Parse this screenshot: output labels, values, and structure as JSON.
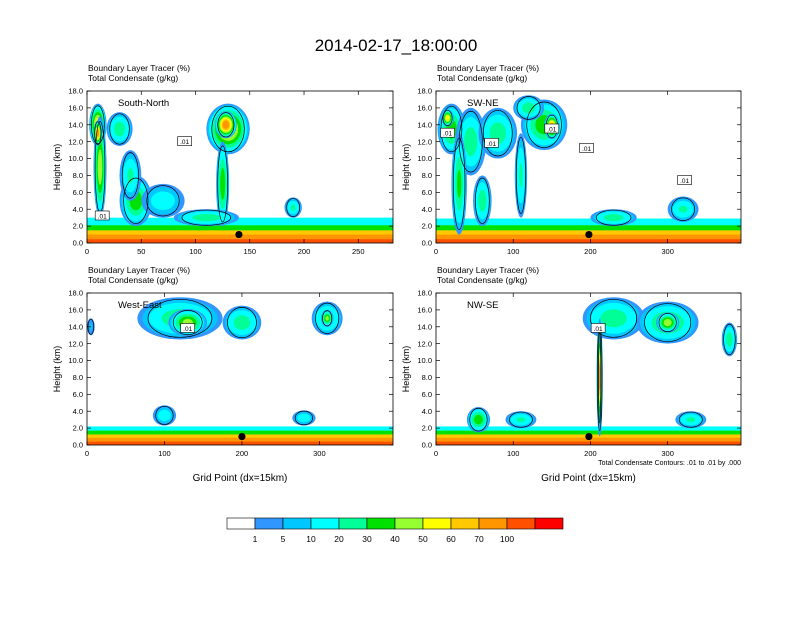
{
  "title": "2014-02-17_18:00:00",
  "chart_data": [
    {
      "type": "heatmap",
      "panel": "top-left",
      "label": "South-North",
      "header_line1": "Boundary Layer Tracer   (%)",
      "header_line2": "Total Condensate   (g/kg)",
      "ylabel": "Height (km)",
      "xlabel": "",
      "xlim": [
        0,
        282
      ],
      "ylim": [
        0,
        18
      ],
      "xticks": [
        0,
        50,
        100,
        150,
        200,
        250
      ],
      "yticks": [
        "0.0",
        "2.0",
        "4.0",
        "6.0",
        "8.0",
        "10.0",
        "12.0",
        "14.0",
        "16.0",
        "18.0"
      ],
      "contour_labels": [
        {
          "text": ".01",
          "x": 14,
          "y": 3.2
        },
        {
          "text": ".01",
          "x": 90,
          "y": 12
        }
      ],
      "marker": {
        "x": 140,
        "y": 1.0
      },
      "blobs": [
        {
          "x": 10,
          "y": 14,
          "v": 55,
          "rx": 8,
          "ry": 2.5
        },
        {
          "x": 12,
          "y": 9,
          "v": 45,
          "rx": 6,
          "ry": 6
        },
        {
          "x": 10,
          "y": 13,
          "v": 70,
          "rx": 4,
          "ry": 1.5
        },
        {
          "x": 30,
          "y": 13.5,
          "v": 25,
          "rx": 12,
          "ry": 2
        },
        {
          "x": 45,
          "y": 5,
          "v": 35,
          "rx": 15,
          "ry": 3
        },
        {
          "x": 40,
          "y": 8,
          "v": 20,
          "rx": 10,
          "ry": 3
        },
        {
          "x": 130,
          "y": 13.5,
          "v": 55,
          "rx": 20,
          "ry": 3
        },
        {
          "x": 128,
          "y": 14,
          "v": 75,
          "rx": 10,
          "ry": 1.6
        },
        {
          "x": 125,
          "y": 7,
          "v": 35,
          "rx": 6,
          "ry": 5
        },
        {
          "x": 70,
          "y": 5,
          "v": 15,
          "rx": 20,
          "ry": 2
        },
        {
          "x": 190,
          "y": 4.2,
          "v": 20,
          "rx": 8,
          "ry": 1.2
        },
        {
          "x": 110,
          "y": 3,
          "v": 25,
          "rx": 30,
          "ry": 1
        }
      ],
      "surface": [
        {
          "v": 10,
          "h": 3.0
        },
        {
          "v": 30,
          "h": 2.1
        },
        {
          "v": 60,
          "h": 1.5
        },
        {
          "v": 80,
          "h": 1.0
        },
        {
          "v": 100,
          "h": 0.45
        }
      ]
    },
    {
      "type": "heatmap",
      "panel": "top-right",
      "label": "SW-NE",
      "header_line1": "Boundary Layer Tracer   (%)",
      "header_line2": "Total Condensate   (g/kg)",
      "ylabel": "Height (km)",
      "xlabel": "",
      "xlim": [
        0,
        395
      ],
      "ylim": [
        0,
        18
      ],
      "xticks": [
        0,
        100,
        200,
        300
      ],
      "yticks": [
        "0.0",
        "2.0",
        "4.0",
        "6.0",
        "8.0",
        "10.0",
        "12.0",
        "14.0",
        "16.0",
        "18.0"
      ],
      "contour_labels": [
        {
          "text": ".01",
          "x": 15,
          "y": 13
        },
        {
          "text": ".01",
          "x": 72,
          "y": 11.8
        },
        {
          "text": ".01",
          "x": 150,
          "y": 13.5
        },
        {
          "text": ".01",
          "x": 195,
          "y": 11.2
        },
        {
          "text": ".01",
          "x": 322,
          "y": 7.4
        }
      ],
      "marker": {
        "x": 198,
        "y": 1.0
      },
      "blobs": [
        {
          "x": 20,
          "y": 13.5,
          "v": 35,
          "rx": 18,
          "ry": 3
        },
        {
          "x": 15,
          "y": 14.8,
          "v": 55,
          "rx": 8,
          "ry": 1
        },
        {
          "x": 45,
          "y": 12,
          "v": 25,
          "rx": 20,
          "ry": 4
        },
        {
          "x": 30,
          "y": 7,
          "v": 30,
          "rx": 10,
          "ry": 6
        },
        {
          "x": 80,
          "y": 13,
          "v": 25,
          "rx": 25,
          "ry": 3
        },
        {
          "x": 140,
          "y": 14,
          "v": 35,
          "rx": 30,
          "ry": 3
        },
        {
          "x": 150,
          "y": 13.8,
          "v": 65,
          "rx": 10,
          "ry": 1.5
        },
        {
          "x": 120,
          "y": 16,
          "v": 25,
          "rx": 20,
          "ry": 1.5
        },
        {
          "x": 110,
          "y": 8,
          "v": 20,
          "rx": 8,
          "ry": 5
        },
        {
          "x": 60,
          "y": 5,
          "v": 25,
          "rx": 12,
          "ry": 3
        },
        {
          "x": 320,
          "y": 4,
          "v": 20,
          "rx": 20,
          "ry": 1.5
        },
        {
          "x": 230,
          "y": 3,
          "v": 25,
          "rx": 30,
          "ry": 1
        }
      ],
      "surface": [
        {
          "v": 10,
          "h": 2.9
        },
        {
          "v": 30,
          "h": 2.1
        },
        {
          "v": 60,
          "h": 1.5
        },
        {
          "v": 80,
          "h": 1.0
        },
        {
          "v": 100,
          "h": 0.45
        }
      ]
    },
    {
      "type": "heatmap",
      "panel": "bottom-left",
      "label": "West-East",
      "header_line1": "Boundary Layer Tracer   (%)",
      "header_line2": "Total Condensate   (g/kg)",
      "ylabel": "Height (km)",
      "xlabel": "Grid Point (dx=15km)",
      "xlim": [
        0,
        395
      ],
      "ylim": [
        0,
        18
      ],
      "xticks": [
        0,
        100,
        200,
        300
      ],
      "yticks": [
        "0.0",
        "2.0",
        "4.0",
        "6.0",
        "8.0",
        "10.0",
        "12.0",
        "14.0",
        "16.0",
        "18.0"
      ],
      "contour_labels": [
        {
          "text": ".01",
          "x": 130,
          "y": 13.8
        }
      ],
      "marker": {
        "x": 200,
        "y": 1.0
      },
      "blobs": [
        {
          "x": 120,
          "y": 15,
          "v": 25,
          "rx": 55,
          "ry": 2.5
        },
        {
          "x": 130,
          "y": 14.5,
          "v": 40,
          "rx": 25,
          "ry": 1.6
        },
        {
          "x": 200,
          "y": 14.5,
          "v": 25,
          "rx": 25,
          "ry": 2
        },
        {
          "x": 310,
          "y": 15,
          "v": 25,
          "rx": 20,
          "ry": 2
        },
        {
          "x": 310,
          "y": 15,
          "v": 40,
          "rx": 8,
          "ry": 1
        },
        {
          "x": 5,
          "y": 14,
          "v": 5,
          "rx": 5,
          "ry": 1
        },
        {
          "x": 100,
          "y": 3.5,
          "v": 15,
          "rx": 15,
          "ry": 1.2
        },
        {
          "x": 280,
          "y": 3.2,
          "v": 15,
          "rx": 15,
          "ry": 0.9
        }
      ],
      "surface": [
        {
          "v": 10,
          "h": 2.2
        },
        {
          "v": 30,
          "h": 1.7
        },
        {
          "v": 60,
          "h": 1.25
        },
        {
          "v": 80,
          "h": 0.85
        },
        {
          "v": 100,
          "h": 0.4
        }
      ]
    },
    {
      "type": "heatmap",
      "panel": "bottom-right",
      "label": "NW-SE",
      "header_line1": "Boundary Layer Tracer   (%)",
      "header_line2": "Total Condensate   (g/kg)",
      "ylabel": "Height (km)",
      "xlabel": "Grid Point (dx=15km)",
      "xlim": [
        0,
        395
      ],
      "ylim": [
        0,
        18
      ],
      "xticks": [
        0,
        100,
        200,
        300
      ],
      "yticks": [
        "0.0",
        "2.0",
        "4.0",
        "6.0",
        "8.0",
        "10.0",
        "12.0",
        "14.0",
        "16.0",
        "18.0"
      ],
      "contour_labels": [
        {
          "text": ".01",
          "x": 210,
          "y": 13.8
        }
      ],
      "footnote": "Total Condensate Contours: .01 to .01 by .000",
      "marker": {
        "x": 198,
        "y": 1.0
      },
      "blobs": [
        {
          "x": 230,
          "y": 15,
          "v": 25,
          "rx": 40,
          "ry": 2.5
        },
        {
          "x": 300,
          "y": 14.5,
          "v": 30,
          "rx": 40,
          "ry": 2.5
        },
        {
          "x": 300,
          "y": 14.5,
          "v": 45,
          "rx": 15,
          "ry": 1.2
        },
        {
          "x": 380,
          "y": 12.5,
          "v": 25,
          "rx": 10,
          "ry": 2
        },
        {
          "x": 212,
          "y": 8,
          "v": 40,
          "rx": 4,
          "ry": 7
        },
        {
          "x": 212,
          "y": 8,
          "v": 70,
          "rx": 2,
          "ry": 6
        },
        {
          "x": 55,
          "y": 3,
          "v": 35,
          "rx": 15,
          "ry": 1.5
        },
        {
          "x": 110,
          "y": 3,
          "v": 20,
          "rx": 20,
          "ry": 1
        },
        {
          "x": 330,
          "y": 3,
          "v": 20,
          "rx": 20,
          "ry": 1
        }
      ],
      "surface": [
        {
          "v": 10,
          "h": 2.2
        },
        {
          "v": 30,
          "h": 1.7
        },
        {
          "v": 60,
          "h": 1.25
        },
        {
          "v": 80,
          "h": 0.85
        },
        {
          "v": 100,
          "h": 0.4
        }
      ]
    }
  ],
  "colorbar": {
    "levels": [
      1,
      5,
      10,
      20,
      30,
      40,
      50,
      60,
      70,
      100
    ],
    "colors": [
      "#ffffff",
      "#3296ff",
      "#00c8ff",
      "#00ffff",
      "#00ff96",
      "#00e100",
      "#96ff32",
      "#ffff00",
      "#ffc800",
      "#ff9600",
      "#ff5000",
      "#ff0000"
    ]
  },
  "colors": {
    "contour": "#000000",
    "marker": "#000000"
  }
}
